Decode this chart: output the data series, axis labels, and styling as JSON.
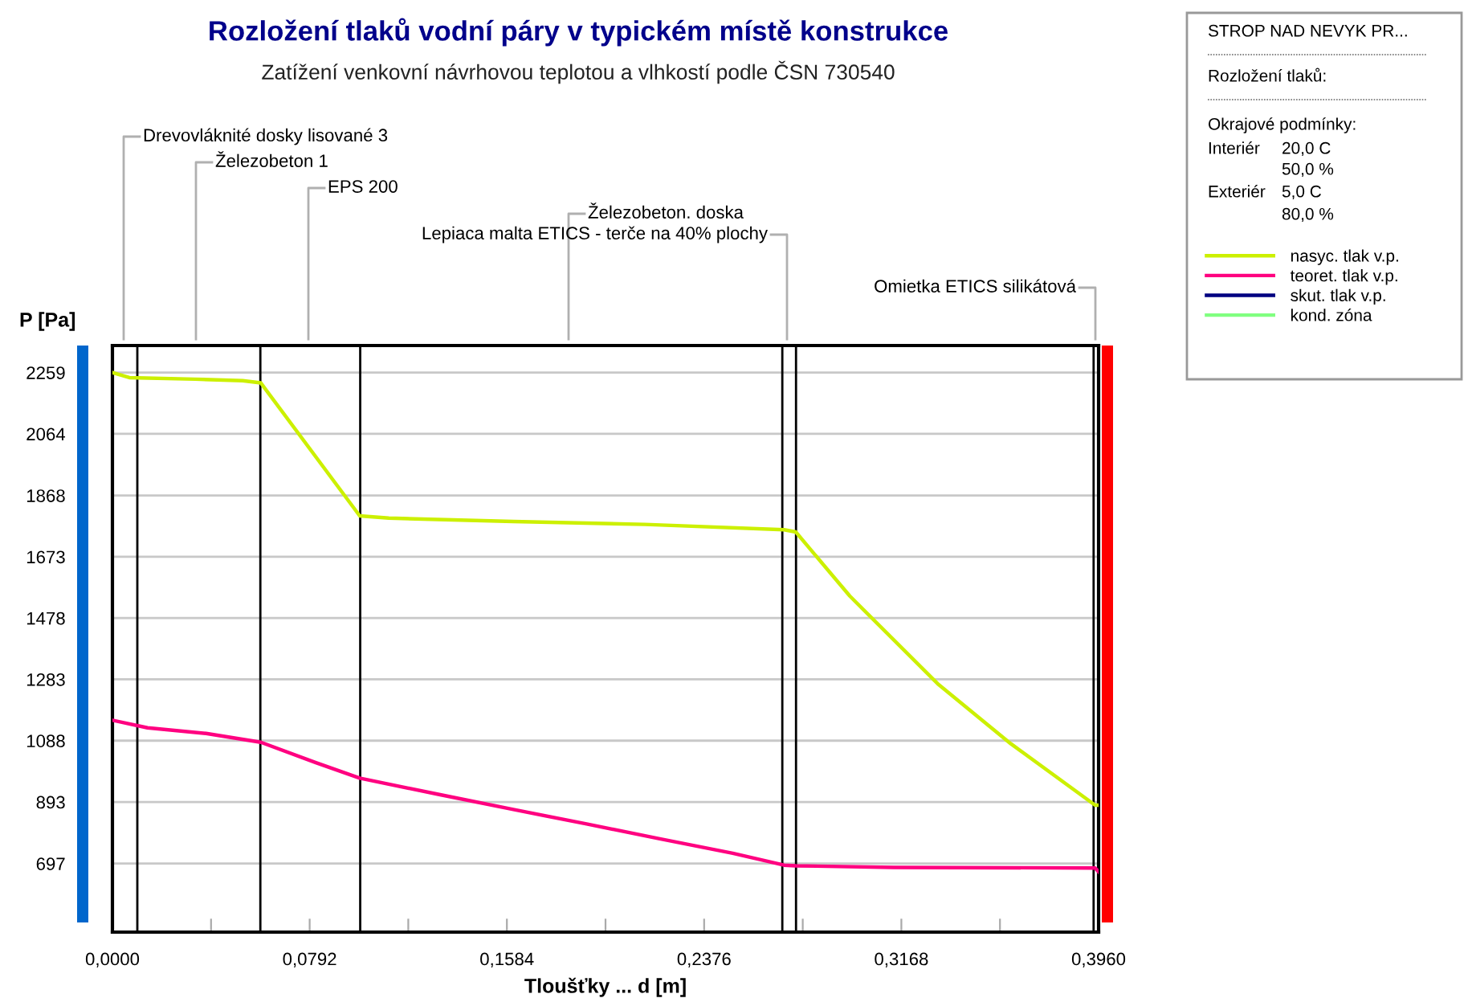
{
  "chart_data": {
    "type": "line",
    "title": "Rozložení tlaků vodní páry v typickém místě konstrukce",
    "subtitle": "Zatížení venkovní návrhovou teplotou a vlhkostí podle ČSN 730540",
    "xlabel": "Tloušťky ... d [m]",
    "ylabel": "P [Pa]",
    "xlim": [
      0,
      0.396
    ],
    "ylim": [
      479,
      2345
    ],
    "xticks": [
      {
        "value": 0,
        "label": "0,0000"
      },
      {
        "value": 0.0396,
        "label": null
      },
      {
        "value": 0.0792,
        "label": "0,0792"
      },
      {
        "value": 0.1188,
        "label": null
      },
      {
        "value": 0.1584,
        "label": "0,1584"
      },
      {
        "value": 0.198,
        "label": null
      },
      {
        "value": 0.2376,
        "label": "0,2376"
      },
      {
        "value": 0.2772,
        "label": null
      },
      {
        "value": 0.3168,
        "label": "0,3168"
      },
      {
        "value": 0.3564,
        "label": null
      },
      {
        "value": 0.396,
        "label": "0,3960"
      }
    ],
    "yticks": [
      697,
      893,
      1088,
      1283,
      1478,
      1673,
      1868,
      2064,
      2259
    ],
    "grid": "y",
    "legend": "right",
    "line_style": "solid",
    "series": [
      {
        "name": "nasyc. tlak v.p.",
        "color": "#ccf000",
        "x": [
          0,
          0.0068,
          0.0332,
          0.0523,
          0.0596,
          0.0993,
          0.111,
          0.161,
          0.2139,
          0.2697,
          0.2744,
          0.2961,
          0.3314,
          0.3608,
          0.3946,
          0.396
        ],
        "values": [
          2259,
          2243,
          2238,
          2233,
          2226,
          1803,
          1796,
          1785,
          1776,
          1759,
          1752,
          1548,
          1269,
          1078,
          883,
          883
        ]
      },
      {
        "name": "teoret. tlak v.p.",
        "color": "#ff0080",
        "x": [
          0,
          0.0141,
          0.0376,
          0.0596,
          0.0817,
          0.0993,
          0.1316,
          0.161,
          0.1904,
          0.2198,
          0.2491,
          0.2697,
          0.2744,
          0.3138,
          0.3946,
          0.396
        ],
        "values": [
          1153,
          1129,
          1111,
          1083,
          1018,
          969,
          916,
          869,
          823,
          776,
          730,
          692,
          690,
          685,
          683,
          671
        ]
      },
      {
        "name": "skut. tlak v.p.",
        "color": "#000080",
        "values": [
          null
        ]
      },
      {
        "name": "kond. zóna",
        "color": "#80ff80",
        "values": [
          null
        ]
      }
    ],
    "ref_lines": [
      {
        "axis": "x",
        "value": 0.01,
        "color": "#000000"
      },
      {
        "axis": "x",
        "value": 0.0594,
        "color": "#000000"
      },
      {
        "axis": "x",
        "value": 0.0995,
        "color": "#000000"
      },
      {
        "axis": "x",
        "value": 0.269,
        "color": "#000000"
      },
      {
        "axis": "x",
        "value": 0.2745,
        "color": "#000000"
      },
      {
        "axis": "x",
        "value": 0.394,
        "color": "#000000"
      }
    ],
    "annotations": [
      "Drevovláknité dosky lisované 3",
      "Železobeton 1",
      "EPS 200",
      "Železobeton. doska",
      "Lepiaca malta ETICS - terče na 40% plochy",
      "Omietka ETICS silikátová",
      "STROP NAD NEVYK PR...",
      "Rozložení tlaků:",
      "Okrajové podmínky:",
      "Interiér",
      "20,0 C",
      "50,0 %",
      "Exteriér",
      "5,0 C",
      "80,0 %"
    ]
  }
}
